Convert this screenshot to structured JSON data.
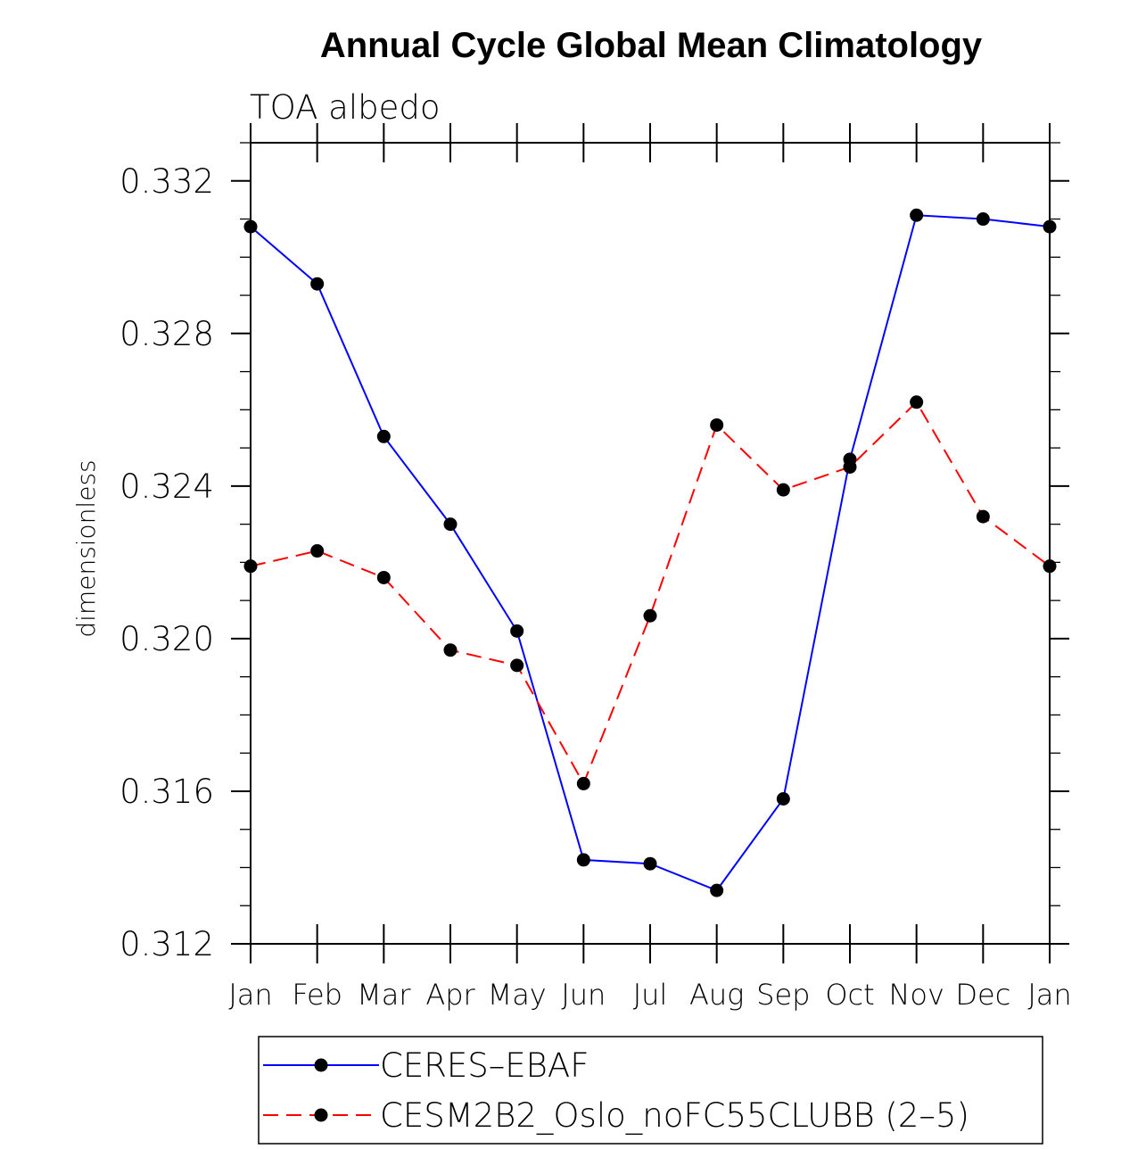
{
  "chart_data": {
    "type": "line",
    "title": "Annual Cycle Global Mean Climatology",
    "subtitle": "TOA albedo",
    "xlabel": "",
    "ylabel": "dimensionless",
    "categories": [
      "Jan",
      "Feb",
      "Mar",
      "Apr",
      "May",
      "Jun",
      "Jul",
      "Aug",
      "Sep",
      "Oct",
      "Nov",
      "Dec",
      "Jan"
    ],
    "ylim": [
      0.312,
      0.333
    ],
    "yticks": [
      0.312,
      0.316,
      0.32,
      0.324,
      0.328,
      0.332
    ],
    "ytick_labels": [
      "0.312",
      "0.316",
      "0.320",
      "0.324",
      "0.328",
      "0.332"
    ],
    "legend_position": "bottom",
    "series": [
      {
        "name": "CERES–EBAF",
        "color": "#0000ff",
        "dash": "solid",
        "marker": "dot",
        "values": [
          0.3308,
          0.3293,
          0.3253,
          0.323,
          0.3202,
          0.3142,
          0.3141,
          0.3134,
          0.3158,
          0.3247,
          0.3311,
          0.331,
          0.3308
        ]
      },
      {
        "name": "CESM2B2_Oslo_noFC55CLUBB (2–5)",
        "color": "#ff0000",
        "dash": "dashed",
        "marker": "dot",
        "values": [
          0.3219,
          0.3223,
          0.3216,
          0.3197,
          0.3193,
          0.3162,
          0.3206,
          0.3256,
          0.3239,
          0.3245,
          0.3262,
          0.3232,
          0.3219
        ]
      }
    ]
  }
}
